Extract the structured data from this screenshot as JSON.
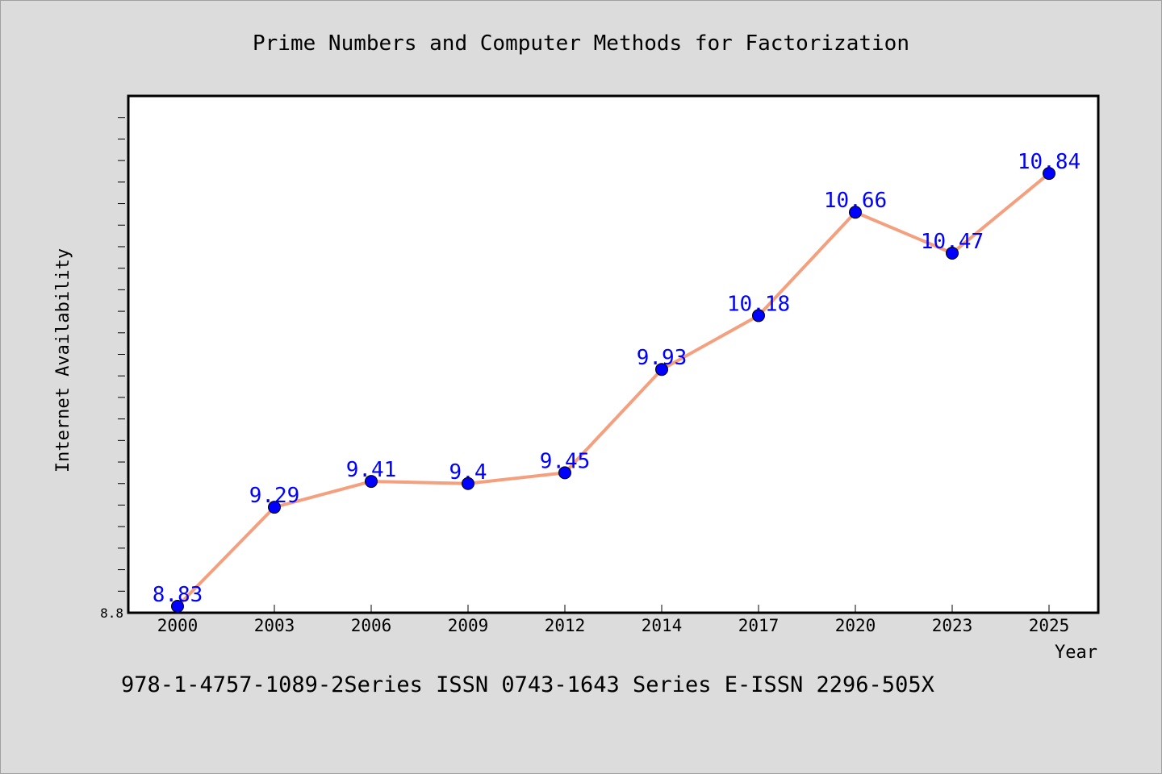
{
  "footnote": "978-1-4757-1089-2Series ISSN 0743-1643 Series E-ISSN 2296-505X",
  "colors": {
    "line": "#f4a07e",
    "marker": "#0000ff",
    "label": "#0000ff",
    "background": "#dcdcdc",
    "plot_background": "#ffffff"
  },
  "chart_data": {
    "type": "line",
    "title": "Prime Numbers and Computer Methods for Factorization",
    "xlabel": "Year",
    "ylabel": "Internet Availability",
    "categories": [
      "2000",
      "2003",
      "2006",
      "2009",
      "2012",
      "2014",
      "2017",
      "2020",
      "2023",
      "2025"
    ],
    "series": [
      {
        "values": [
          8.83,
          9.29,
          9.41,
          9.4,
          9.45,
          9.93,
          10.18,
          10.66,
          10.47,
          10.84
        ]
      }
    ],
    "data_labels": [
      "8.83",
      "9.29",
      "9.41",
      "9.4",
      "9.45",
      "9.93",
      "10.18",
      "10.66",
      "10.47",
      "10.84"
    ],
    "yticks": [
      8.8
    ],
    "ytick_labels": [
      "8.8"
    ],
    "ylim": [
      8.8,
      11.2
    ],
    "grid": false,
    "legend": "none"
  }
}
